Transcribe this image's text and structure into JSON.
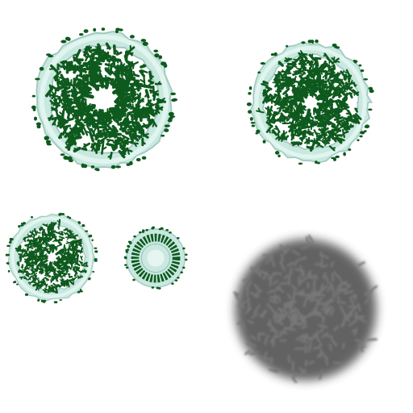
{
  "sheet": {
    "background": "#ffffff",
    "sprites": [
      {
        "name": "large-snowy-wreath",
        "kind": "wreath",
        "snow_color": "#c9e8e0",
        "needle_color": "#0e5a1e"
      },
      {
        "name": "medium-snowy-wreath",
        "kind": "wreath",
        "snow_color": "#c9e8e0",
        "needle_color": "#0e5a1e"
      },
      {
        "name": "small-snowy-wreath",
        "kind": "wreath",
        "snow_color": "#c9e8e0",
        "needle_color": "#0e5a1e"
      },
      {
        "name": "tiny-snowy-wreath",
        "kind": "wreath",
        "snow_color": "#c9e8e0",
        "needle_color": "#0e5a1e"
      },
      {
        "name": "wreath-shadow",
        "kind": "shadow",
        "color": "#5a5a5a"
      }
    ]
  }
}
